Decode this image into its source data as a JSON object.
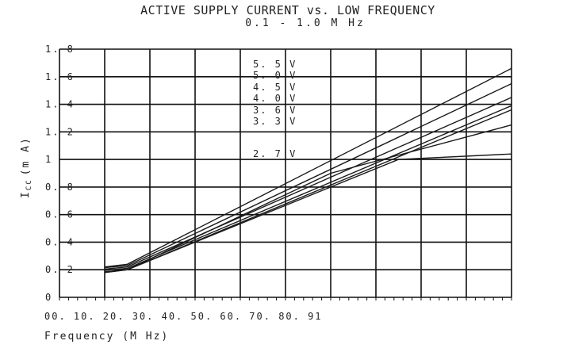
{
  "chart_data": {
    "type": "line",
    "title": "ACTIVE SUPPLY CURRENT vs. LOW FREQUENCY",
    "subtitle": "0.1 - 1.0 M Hz",
    "ylabel_main": "I",
    "ylabel_sub": "CC",
    "ylabel_unit": "(m A)",
    "xlabel": "Frequency (M Hz)",
    "x_tick_text": "00. 10. 20. 30. 40. 50. 60. 70. 80. 91",
    "yticks": [
      {
        "value": 0,
        "label": "0"
      },
      {
        "value": 0.2,
        "label": "0. 2"
      },
      {
        "value": 0.4,
        "label": "0. 4"
      },
      {
        "value": 0.6,
        "label": "0. 6"
      },
      {
        "value": 0.8,
        "label": "0. 8"
      },
      {
        "value": 1,
        "label": "1"
      },
      {
        "value": 1.2,
        "label": "1. 2"
      },
      {
        "value": 1.4,
        "label": "1. 4"
      },
      {
        "value": 1.6,
        "label": "1. 6"
      },
      {
        "value": 1.8,
        "label": "1. 8"
      }
    ],
    "xlim": [
      0,
      1
    ],
    "ylim": [
      0,
      1.8
    ],
    "grid": true,
    "series": [
      {
        "name": "5. 5 V",
        "x": [
          0.1,
          0.15,
          1.0
        ],
        "y": [
          0.22,
          0.24,
          1.66
        ]
      },
      {
        "name": "5. 0 V",
        "x": [
          0.1,
          0.15,
          1.0
        ],
        "y": [
          0.215,
          0.23,
          1.55
        ]
      },
      {
        "name": "4. 5 V",
        "x": [
          0.1,
          0.15,
          1.0
        ],
        "y": [
          0.205,
          0.22,
          1.45
        ]
      },
      {
        "name": "4. 0 V",
        "x": [
          0.1,
          0.15,
          1.0
        ],
        "y": [
          0.195,
          0.21,
          1.39
        ]
      },
      {
        "name": "3. 6 V",
        "x": [
          0.1,
          0.15,
          1.0
        ],
        "y": [
          0.185,
          0.2,
          1.36
        ]
      },
      {
        "name": "3. 3 V",
        "x": [
          0.1,
          0.15,
          0.6,
          1.0
        ],
        "y": [
          0.18,
          0.2,
          0.9,
          1.25
        ]
      },
      {
        "name": "2. 7 V",
        "x": [
          0.1,
          0.15,
          0.75,
          1.0
        ],
        "y": [
          0.18,
          0.2,
          1.0,
          1.04
        ]
      }
    ]
  }
}
